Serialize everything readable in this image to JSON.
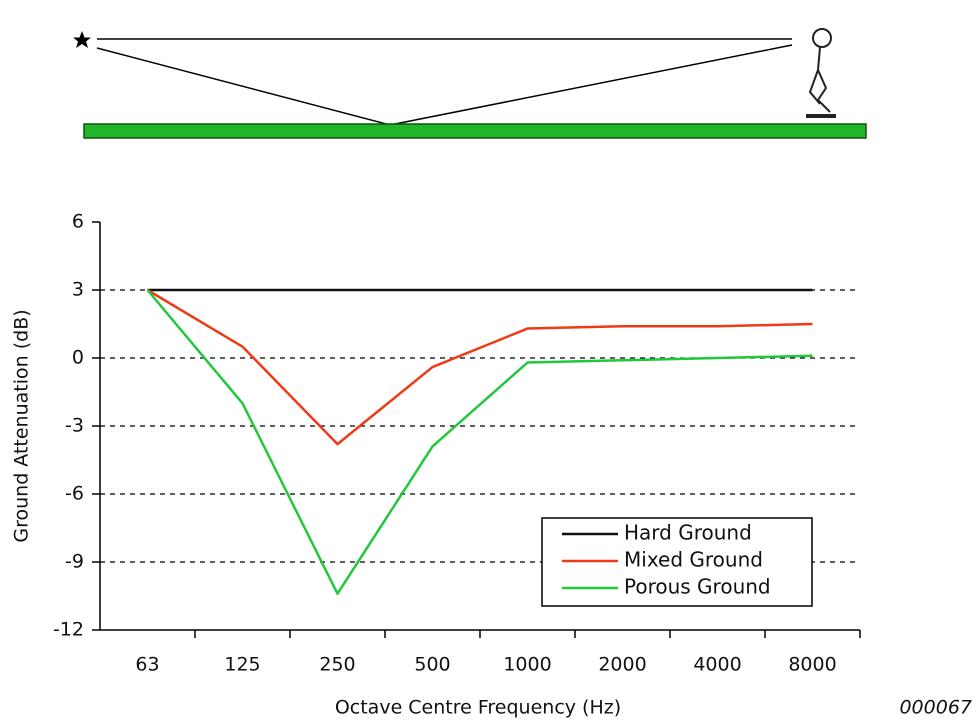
{
  "chart_data": {
    "type": "line",
    "x_label": "Octave Centre Frequency (Hz)",
    "y_label": "Ground Attenuation (dB)",
    "categories": [
      "63",
      "125",
      "250",
      "500",
      "1000",
      "2000",
      "4000",
      "8000"
    ],
    "series": [
      {
        "name": "Hard Ground",
        "color": "#111111",
        "values": [
          3,
          3,
          3,
          3,
          3,
          3,
          3,
          3
        ]
      },
      {
        "name": "Mixed Ground",
        "color": "#f03a17",
        "values": [
          3,
          0.5,
          -3.8,
          -0.4,
          1.3,
          1.4,
          1.4,
          1.5
        ]
      },
      {
        "name": "Porous Ground",
        "color": "#22c73c",
        "values": [
          3,
          -2,
          -10.4,
          -3.9,
          -0.2,
          -0.1,
          0,
          0.1
        ]
      }
    ],
    "ylim": [
      -12,
      6
    ],
    "yticks": [
      -12,
      -9,
      -6,
      -3,
      0,
      3,
      6
    ],
    "grid": true,
    "legend": "lower right"
  },
  "figure_id": "000067"
}
